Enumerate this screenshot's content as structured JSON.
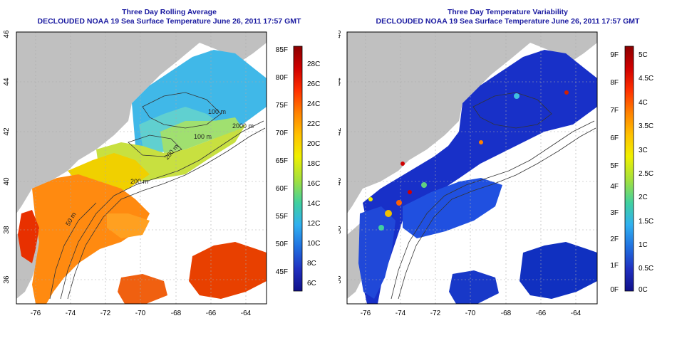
{
  "panels": [
    {
      "title": "Three Day Rolling Average",
      "subtitle": "DECLOUDED NOAA 19 Sea Surface Temperature June 26, 2011 17:57 GMT",
      "contour_labels": [
        "100 m",
        "2000 m",
        "100 m",
        "200 m",
        "50 m",
        "200 m"
      ],
      "colorbar": {
        "fahrenheit": [
          "85F",
          "80F",
          "75F",
          "70F",
          "65F",
          "60F",
          "55F",
          "50F",
          "45F"
        ],
        "celsius": [
          "28C",
          "26C",
          "24C",
          "22C",
          "20C",
          "18C",
          "16C",
          "14C",
          "12C",
          "10C",
          "8C",
          "6C"
        ],
        "colors": [
          "#8b0000",
          "#d00000",
          "#ff3000",
          "#ff8000",
          "#ffc000",
          "#f0f000",
          "#a0e040",
          "#40d0a0",
          "#30b0f0",
          "#2070e0",
          "#2030c0",
          "#10108a"
        ]
      }
    },
    {
      "title": "Three Day Temperature Variability",
      "subtitle": "DECLOUDED NOAA 19 Sea Surface Temperature June 26, 2011 17:57 GMT",
      "colorbar": {
        "fahrenheit": [
          "9F",
          "8F",
          "7F",
          "6F",
          "5F",
          "4F",
          "3F",
          "2F",
          "1F",
          "0F"
        ],
        "celsius": [
          "5C",
          "4.5C",
          "4C",
          "3.5C",
          "3C",
          "2.5C",
          "2C",
          "1.5C",
          "1C",
          "0.5C",
          "0C"
        ],
        "colors": [
          "#8b0000",
          "#d00000",
          "#ff3000",
          "#ff8000",
          "#ffc000",
          "#f0f000",
          "#a0e040",
          "#40d0a0",
          "#30b0f0",
          "#2070e0",
          "#2030c0",
          "#10108a"
        ]
      }
    }
  ],
  "axes": {
    "x_ticks": [
      "-76",
      "-74",
      "-72",
      "-70",
      "-68",
      "-66",
      "-64"
    ],
    "y_ticks": [
      "36",
      "38",
      "40",
      "42",
      "44",
      "46"
    ]
  },
  "colors": {
    "land": "#c0c0c0",
    "nodata": "#ffffff",
    "title": "#1a1aa0",
    "grid": "#aaaaaa"
  }
}
